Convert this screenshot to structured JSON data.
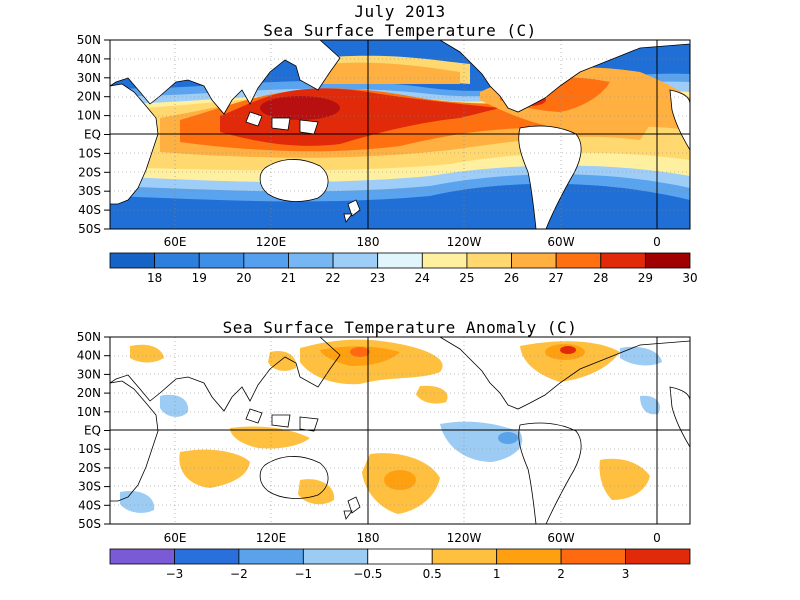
{
  "header": {
    "title_line1": "July 2013",
    "panel1_title": "Sea Surface Temperature (C)",
    "panel2_title": "Sea Surface Temperature Anomaly (C)"
  },
  "lat_labels": [
    "50N",
    "40N",
    "30N",
    "20N",
    "10N",
    "EQ",
    "10S",
    "20S",
    "30S",
    "40S",
    "50S"
  ],
  "lon_labels": [
    "60E",
    "120E",
    "180",
    "120W",
    "60W",
    "0"
  ],
  "sst_colorbar": {
    "colors": [
      "#1663c8",
      "#2c7fdc",
      "#3f8fe6",
      "#55a0ee",
      "#75b6f3",
      "#9ecdf8",
      "#e0f6fc",
      "#fff0a0",
      "#ffd970",
      "#ffb040",
      "#ff7010",
      "#e02a0a",
      "#a00000"
    ],
    "tick_values": [
      "18",
      "19",
      "20",
      "21",
      "22",
      "23",
      "24",
      "25",
      "26",
      "27",
      "28",
      "29",
      "30"
    ]
  },
  "anom_colorbar": {
    "colors": [
      "#7b5ad6",
      "#2a70dc",
      "#5aa2ea",
      "#9ccbf4",
      "#ffffff",
      "#ffc040",
      "#ffa010",
      "#ff6a10",
      "#e02a0a"
    ],
    "tick_values": [
      "-3",
      "-2",
      "-1",
      "-0.5",
      "0.5",
      "1",
      "2",
      "3"
    ]
  }
}
